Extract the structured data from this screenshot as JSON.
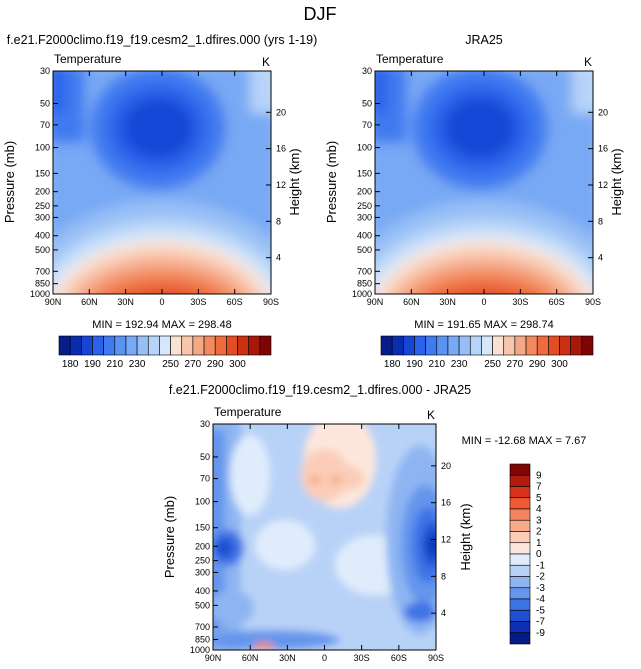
{
  "figure_title": "DJF",
  "chart_data": [
    {
      "type": "heatmap",
      "title": "f.e21.F2000climo.f19_f19.cesm2_1.dfires.000 (yrs 1-19)",
      "subtitle_left": "Temperature",
      "subtitle_right": "K",
      "ylabel": "Pressure (mb)",
      "ylabel_right": "Height (km)",
      "x_ticks": [
        "90N",
        "60N",
        "30N",
        "0",
        "30S",
        "60S",
        "90S"
      ],
      "y_ticks": [
        "30",
        "50",
        "70",
        "100",
        "150",
        "200",
        "250",
        "300",
        "400",
        "500",
        "700",
        "850",
        "1000"
      ],
      "y2_ticks": [
        "20",
        "16",
        "12",
        "8",
        "4"
      ],
      "stats": "MIN = 192.94  MAX = 298.48",
      "colorbar_labels": [
        "180",
        "190",
        "210",
        "230",
        "250",
        "270",
        "290",
        "300"
      ]
    },
    {
      "type": "heatmap",
      "title": "JRA25",
      "subtitle_left": "Temperature",
      "subtitle_right": "K",
      "ylabel": "Pressure (mb)",
      "ylabel_right": "Height (km)",
      "x_ticks": [
        "90N",
        "60N",
        "30N",
        "0",
        "30S",
        "60S",
        "90S"
      ],
      "y_ticks": [
        "30",
        "50",
        "70",
        "100",
        "150",
        "200",
        "250",
        "300",
        "400",
        "500",
        "700",
        "850",
        "1000"
      ],
      "y2_ticks": [
        "20",
        "16",
        "12",
        "8",
        "4"
      ],
      "stats": "MIN = 191.65  MAX = 298.74",
      "colorbar_labels": [
        "180",
        "190",
        "210",
        "230",
        "250",
        "270",
        "290",
        "300"
      ]
    },
    {
      "type": "heatmap",
      "title": "f.e21.F2000climo.f19_f19.cesm2_1.dfires.000 - JRA25",
      "subtitle_left": "Temperature",
      "subtitle_right": "K",
      "ylabel": "Pressure (mb)",
      "ylabel_right": "Height (km)",
      "x_ticks": [
        "90N",
        "60N",
        "30N",
        "0",
        "30S",
        "60S",
        "90S"
      ],
      "y_ticks": [
        "30",
        "50",
        "70",
        "100",
        "150",
        "200",
        "250",
        "300",
        "400",
        "500",
        "700",
        "850",
        "1000"
      ],
      "y2_ticks": [
        "20",
        "16",
        "12",
        "8",
        "4"
      ],
      "stats": "MIN = -12.68  MAX =  7.67",
      "colorbar_labels": [
        "9",
        "7",
        "5",
        "4",
        "3",
        "2",
        "1",
        "0",
        "-1",
        "-2",
        "-3",
        "-4",
        "-5",
        "-7",
        "-9"
      ]
    }
  ],
  "colors": {
    "temperature_scale": [
      "#061d8a",
      "#0a2db0",
      "#1746d6",
      "#2a62ea",
      "#3f7af0",
      "#5a93f2",
      "#78a9f4",
      "#97bff6",
      "#b7d4f8",
      "#d6e7fb",
      "#fbe1d3",
      "#f8c6ad",
      "#f5a885",
      "#f2895f",
      "#ee6b3d",
      "#e24e23",
      "#c93112",
      "#a8180a",
      "#7f0505"
    ],
    "difference_scale": [
      "#7f0505",
      "#b21b0d",
      "#d7321a",
      "#ef5a35",
      "#f4845f",
      "#f8ab8c",
      "#fbcdb8",
      "#fde7dc",
      "#e0ecfb",
      "#b8d2f7",
      "#8eb5f2",
      "#6595ec",
      "#3c73e6",
      "#1f50d2",
      "#0c2fb4",
      "#061b86"
    ]
  }
}
